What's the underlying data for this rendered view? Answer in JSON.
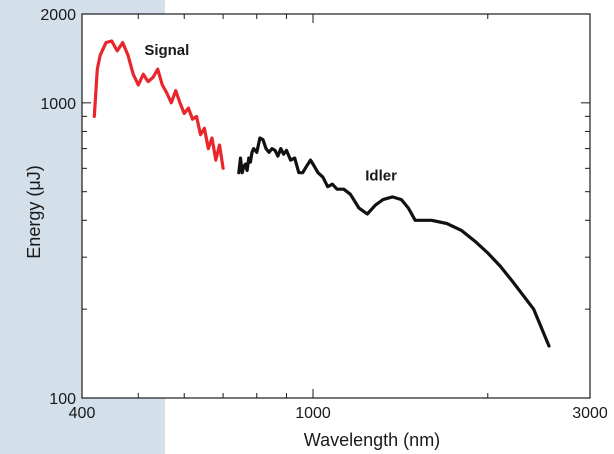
{
  "colors": {
    "background_band": "#d3dfe9",
    "signal": "#e8262b",
    "idler": "#111111",
    "axis": "#1a1a1a"
  },
  "chart_data": {
    "type": "line",
    "title": "",
    "xlabel": "Wavelength (nm)",
    "ylabel": "Energy (μJ)",
    "xscale": "log",
    "yscale": "log",
    "xlim": [
      400,
      3000
    ],
    "ylim": [
      100,
      2000
    ],
    "x_tick_labels": [
      "400",
      "1000",
      "3000"
    ],
    "y_tick_labels": [
      "100",
      "1000",
      "2000"
    ],
    "grid": false,
    "legend": "none",
    "annotations": [
      "Signal",
      "Idler"
    ],
    "series": [
      {
        "name": "Signal",
        "color": "#e8262b",
        "x": [
          420,
          425,
          430,
          440,
          450,
          460,
          470,
          480,
          490,
          500,
          510,
          520,
          530,
          540,
          550,
          560,
          570,
          580,
          590,
          600,
          610,
          620,
          630,
          640,
          650,
          660,
          670,
          680,
          690,
          700
        ],
        "y": [
          900,
          1300,
          1450,
          1600,
          1620,
          1500,
          1600,
          1450,
          1250,
          1150,
          1250,
          1180,
          1220,
          1300,
          1150,
          1080,
          1000,
          1100,
          1000,
          920,
          960,
          880,
          900,
          780,
          820,
          700,
          760,
          640,
          720,
          600
        ]
      },
      {
        "name": "Idler",
        "color": "#111111",
        "x": [
          745,
          750,
          755,
          760,
          765,
          770,
          775,
          780,
          785,
          790,
          800,
          810,
          820,
          830,
          840,
          850,
          860,
          870,
          880,
          890,
          900,
          915,
          930,
          945,
          960,
          975,
          990,
          1000,
          1020,
          1040,
          1060,
          1080,
          1100,
          1130,
          1160,
          1200,
          1240,
          1280,
          1320,
          1370,
          1420,
          1460,
          1500,
          1600,
          1700,
          1800,
          1900,
          2000,
          2100,
          2200,
          2400,
          2550
        ],
        "y": [
          580,
          650,
          580,
          610,
          620,
          590,
          650,
          630,
          680,
          700,
          680,
          760,
          750,
          700,
          680,
          700,
          690,
          660,
          700,
          670,
          690,
          640,
          650,
          580,
          580,
          610,
          640,
          620,
          580,
          560,
          520,
          530,
          510,
          510,
          490,
          440,
          420,
          450,
          470,
          480,
          470,
          440,
          400,
          400,
          390,
          370,
          340,
          310,
          280,
          250,
          200,
          150
        ]
      }
    ]
  }
}
